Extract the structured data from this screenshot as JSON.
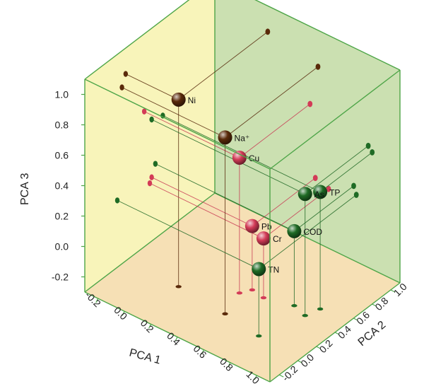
{
  "chart_data": {
    "type": "scatter3d",
    "xlabel": "PCA 1",
    "ylabel": "PCA 2",
    "zlabel": "PCA 3",
    "xlim": [
      -0.3,
      1.1
    ],
    "ylim": [
      -0.3,
      1.1
    ],
    "zlim": [
      -0.3,
      1.1
    ],
    "x_ticks": [
      "-0.2",
      "0.0",
      "0.2",
      "0.4",
      "0.6",
      "0.8",
      "1.0"
    ],
    "y_ticks": [
      "-0.2",
      "0.0",
      "0.2",
      "0.4",
      "0.6",
      "0.8",
      "1.0"
    ],
    "z_ticks": [
      "-0.2",
      "0.0",
      "0.2",
      "0.4",
      "0.6",
      "0.8",
      "1.0"
    ],
    "series": [
      {
        "color": "#5a2a0a",
        "points": [
          {
            "label": "Ni",
            "x": 0.1,
            "y": 0.14,
            "z": 0.93
          },
          {
            "label": "Na⁺",
            "x": 0.48,
            "y": 0.1,
            "z": 0.86
          }
        ]
      },
      {
        "color": "#d33b57",
        "points": [
          {
            "label": "Cu",
            "x": 0.42,
            "y": 0.34,
            "z": 0.59
          },
          {
            "label": "Pb",
            "x": 0.46,
            "y": 0.42,
            "z": 0.12
          },
          {
            "label": "Cr",
            "x": 0.56,
            "y": 0.4,
            "z": 0.09
          }
        ]
      },
      {
        "color": "#1f6b25",
        "points": [
          {
            "label": "As",
            "x": 0.86,
            "y": 0.42,
            "z": 0.5
          },
          {
            "label": "TP",
            "x": 0.89,
            "y": 0.54,
            "z": 0.47
          },
          {
            "label": "COD",
            "x": 0.75,
            "y": 0.46,
            "z": 0.19
          },
          {
            "label": "TN",
            "x": 0.77,
            "y": 0.05,
            "z": 0.14
          }
        ]
      }
    ]
  }
}
